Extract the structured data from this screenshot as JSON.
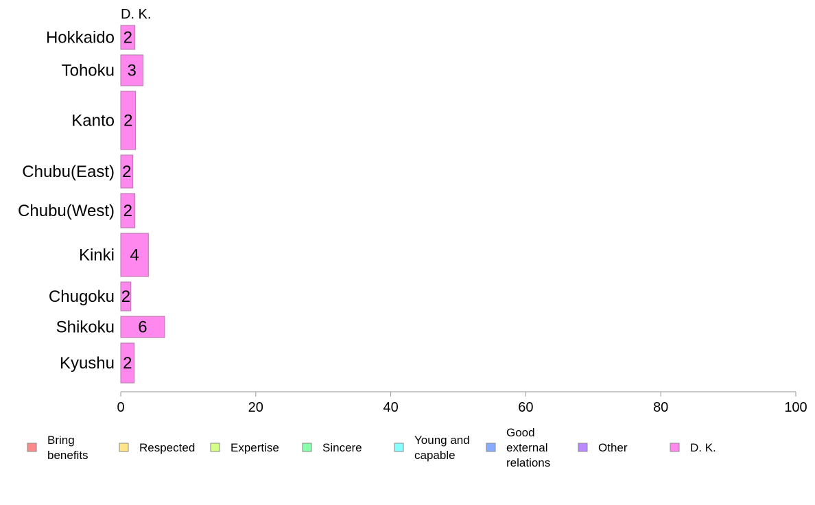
{
  "chart_data": {
    "type": "bar",
    "orientation": "horizontal",
    "stacked": true,
    "series_title": "D. K.",
    "categories": [
      "Hokkaido",
      "Tohoku",
      "Kanto",
      "Chubu(East)",
      "Chubu(West)",
      "Kinki",
      "Chugoku",
      "Shikoku",
      "Kyushu"
    ],
    "series": [
      {
        "name": "D. K.",
        "color": "#ff88ee",
        "values": [
          2.1,
          3.3,
          2.2,
          1.8,
          2.1,
          4.1,
          1.5,
          6.5,
          2.0
        ],
        "labels": [
          "2",
          "3",
          "2",
          "2",
          "2",
          "4",
          "2",
          "6",
          "2"
        ]
      }
    ],
    "xlim": [
      0,
      100
    ],
    "xticks": [
      "0",
      "20",
      "40",
      "60",
      "80",
      "100"
    ],
    "grid": false,
    "legend_position": "bottom",
    "legend": [
      {
        "label": "Bring benefits",
        "color": "#ff8888"
      },
      {
        "label": "Respected",
        "color": "#ffe488"
      },
      {
        "label": "Expertise",
        "color": "#d4ff88"
      },
      {
        "label": "Sincere",
        "color": "#88ffaa"
      },
      {
        "label": "Young and capable",
        "color": "#88ffff"
      },
      {
        "label": "Good external relations",
        "color": "#88aaff"
      },
      {
        "label": "Other",
        "color": "#bb88ff"
      },
      {
        "label": "D. K.",
        "color": "#ff88ee"
      }
    ]
  }
}
